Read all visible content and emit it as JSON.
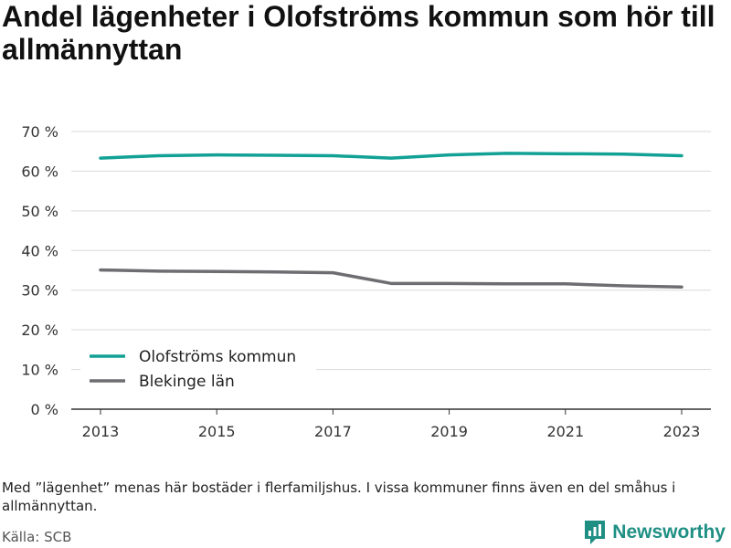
{
  "title": "Andel lägenheter i Olofströms kommun som hör till allmännyttan",
  "note": "Med ”lägenhet” menas här bostäder i flerfamiljshus. I vissa kommuner finns även en del småhus i allmännyttan.",
  "source": "Källa: SCB",
  "brand": "Newsworthy",
  "colors": {
    "olofstrom": "#12a195",
    "blekinge": "#6e6e72",
    "grid": "#d9d9d9",
    "axis": "#333333"
  },
  "chart_data": {
    "type": "line",
    "title": "Andel lägenheter i Olofströms kommun som hör till allmännyttan",
    "x": [
      2013,
      2014,
      2015,
      2016,
      2017,
      2018,
      2019,
      2020,
      2021,
      2022,
      2023
    ],
    "x_ticks": [
      "2013",
      "2015",
      "2017",
      "2019",
      "2021",
      "2023"
    ],
    "y_ticks": [
      "0 %",
      "10 %",
      "20 %",
      "30 %",
      "40 %",
      "50 %",
      "60 %",
      "70 %"
    ],
    "ylim": [
      0,
      70
    ],
    "grid": true,
    "legend_position": "bottom-left",
    "series": [
      {
        "name": "Olofströms kommun",
        "color": "#12a195",
        "values": [
          63.3,
          63.9,
          64.1,
          64.0,
          63.9,
          63.3,
          64.1,
          64.5,
          64.4,
          64.3,
          63.9
        ]
      },
      {
        "name": "Blekinge län",
        "color": "#6e6e72",
        "values": [
          35.1,
          34.8,
          34.7,
          34.6,
          34.4,
          31.7,
          31.7,
          31.6,
          31.6,
          31.1,
          30.8
        ]
      }
    ]
  }
}
